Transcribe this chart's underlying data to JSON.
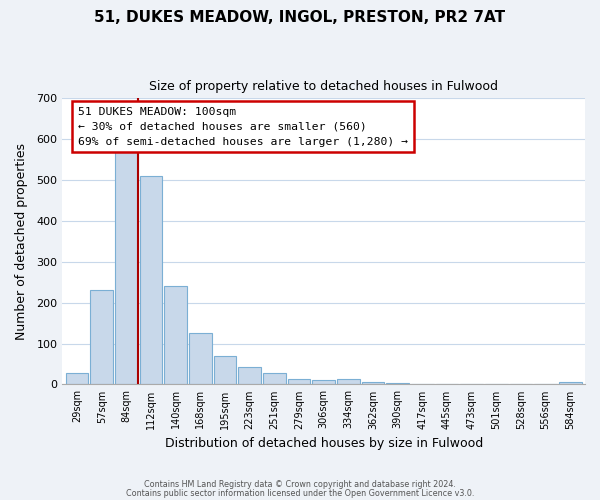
{
  "title": "51, DUKES MEADOW, INGOL, PRESTON, PR2 7AT",
  "subtitle": "Size of property relative to detached houses in Fulwood",
  "xlabel": "Distribution of detached houses by size in Fulwood",
  "ylabel": "Number of detached properties",
  "bar_labels": [
    "29sqm",
    "57sqm",
    "84sqm",
    "112sqm",
    "140sqm",
    "168sqm",
    "195sqm",
    "223sqm",
    "251sqm",
    "279sqm",
    "306sqm",
    "334sqm",
    "362sqm",
    "390sqm",
    "417sqm",
    "445sqm",
    "473sqm",
    "501sqm",
    "528sqm",
    "556sqm",
    "584sqm"
  ],
  "bar_values": [
    28,
    232,
    570,
    510,
    242,
    126,
    70,
    42,
    27,
    13,
    10,
    13,
    5,
    3,
    2,
    1,
    0,
    0,
    0,
    0,
    7
  ],
  "bar_color": "#c8d8ea",
  "bar_edge_color": "#7bafd4",
  "property_line_label": "51 DUKES MEADOW: 100sqm",
  "annotation_line2": "← 30% of detached houses are smaller (560)",
  "annotation_line3": "69% of semi-detached houses are larger (1,280) →",
  "annotation_box_color": "#ffffff",
  "annotation_box_edge": "#cc0000",
  "line_color": "#aa0000",
  "ylim": [
    0,
    700
  ],
  "yticks": [
    0,
    100,
    200,
    300,
    400,
    500,
    600,
    700
  ],
  "footer_line1": "Contains HM Land Registry data © Crown copyright and database right 2024.",
  "footer_line2": "Contains public sector information licensed under the Open Government Licence v3.0.",
  "background_color": "#eef2f7",
  "plot_background": "#ffffff",
  "grid_color": "#c8d8ea"
}
